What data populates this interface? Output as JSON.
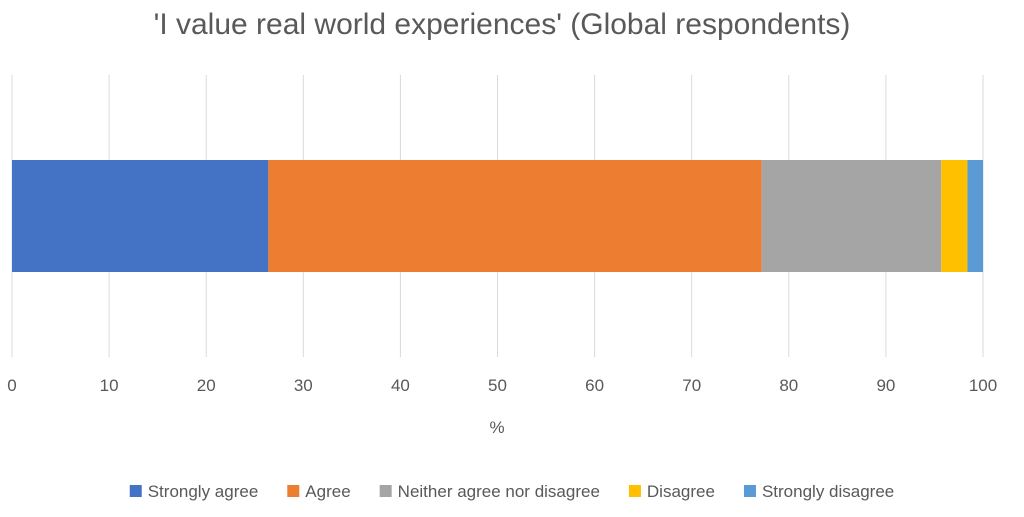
{
  "chart_data": {
    "type": "bar",
    "orientation": "horizontal",
    "stacked": true,
    "title": "'I value real world experiences' (Global respondents)",
    "xlabel": "%",
    "ylabel": "",
    "xlim": [
      0,
      100
    ],
    "x_ticks": [
      "0",
      "10",
      "20",
      "30",
      "40",
      "50",
      "60",
      "70",
      "80",
      "90",
      "100"
    ],
    "grid": true,
    "legend_position": "bottom",
    "series": [
      {
        "name": "Strongly agree",
        "value": 26.4,
        "color": "#4472C4"
      },
      {
        "name": "Agree",
        "value": 50.8,
        "color": "#ED7D31"
      },
      {
        "name": "Neither agree nor disagree",
        "value": 18.5,
        "color": "#A5A5A5"
      },
      {
        "name": "Disagree",
        "value": 2.7,
        "color": "#FFC000"
      },
      {
        "name": "Strongly disagree",
        "value": 1.6,
        "color": "#5B9BD5"
      }
    ]
  }
}
